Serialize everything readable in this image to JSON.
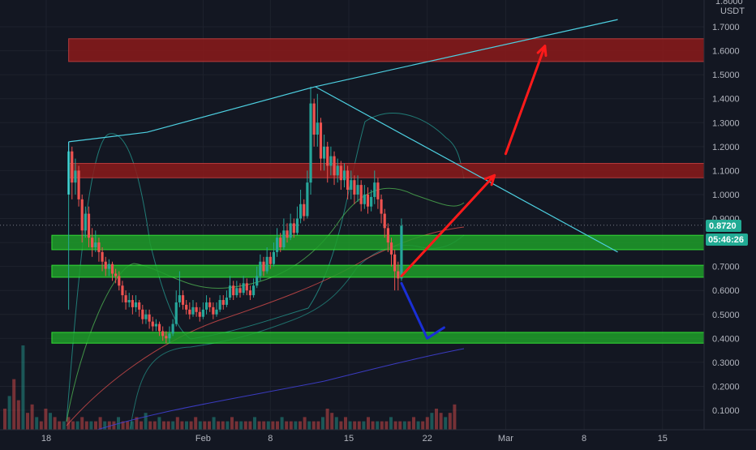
{
  "chart_data": {
    "type": "candlestick",
    "quote_currency": "USDT",
    "y_axis": {
      "min": 0.05,
      "max": 1.82,
      "ticks": [
        0.1,
        0.2,
        0.3,
        0.4,
        0.5,
        0.6,
        0.7,
        0.8,
        0.9,
        1.0,
        1.1,
        1.2,
        1.3,
        1.4,
        1.5,
        1.6,
        1.7
      ],
      "tick_labels": [
        "0.1000",
        "0.2000",
        "0.3000",
        "0.4000",
        "0.5000",
        "0.6000",
        "0.7000",
        "0.8000",
        "0.9000",
        "1.0000",
        "1.1000",
        "1.2000",
        "1.3000",
        "1.4000",
        "1.5000",
        "1.6000",
        "1.7000"
      ],
      "top_partial_label": "1.8000"
    },
    "x_axis": {
      "min_day": 16,
      "max_day": 47,
      "ticks": [
        {
          "day": 18,
          "label": "18"
        },
        {
          "day": 32,
          "label": "Feb"
        },
        {
          "day": 38,
          "label": "8"
        },
        {
          "day": 45,
          "label": "15"
        },
        {
          "day": 52,
          "label": "22"
        },
        {
          "day": 59,
          "label": "Mar"
        },
        {
          "day": 66,
          "label": "8"
        },
        {
          "day": 73,
          "label": "15"
        }
      ]
    },
    "last_price": 0.872,
    "last_price_label": "0.8720",
    "countdown_label": "05:46:26",
    "candles": [
      [
        20.0,
        1.0,
        1.18,
        1.22,
        0.52
      ],
      [
        20.3,
        1.18,
        1.05,
        1.2,
        0.98
      ],
      [
        20.6,
        1.05,
        1.1,
        1.15,
        1.0
      ],
      [
        20.9,
        1.1,
        0.98,
        1.12,
        0.95
      ],
      [
        21.2,
        0.98,
        0.85,
        1.0,
        0.8
      ],
      [
        21.5,
        0.85,
        0.92,
        0.95,
        0.82
      ],
      [
        21.8,
        0.92,
        0.82,
        0.95,
        0.78
      ],
      [
        22.1,
        0.82,
        0.78,
        0.86,
        0.74
      ],
      [
        22.4,
        0.78,
        0.8,
        0.85,
        0.76
      ],
      [
        22.7,
        0.8,
        0.76,
        0.82,
        0.72
      ],
      [
        23.0,
        0.76,
        0.72,
        0.78,
        0.68
      ],
      [
        23.3,
        0.72,
        0.69,
        0.74,
        0.66
      ],
      [
        23.6,
        0.69,
        0.71,
        0.73,
        0.66
      ],
      [
        23.9,
        0.71,
        0.67,
        0.72,
        0.64
      ],
      [
        24.2,
        0.67,
        0.66,
        0.69,
        0.63
      ],
      [
        24.5,
        0.66,
        0.62,
        0.68,
        0.6
      ],
      [
        24.8,
        0.62,
        0.58,
        0.64,
        0.55
      ],
      [
        25.1,
        0.58,
        0.55,
        0.6,
        0.52
      ],
      [
        25.4,
        0.55,
        0.56,
        0.59,
        0.53
      ],
      [
        25.7,
        0.56,
        0.53,
        0.58,
        0.5
      ],
      [
        26.0,
        0.53,
        0.55,
        0.58,
        0.51
      ],
      [
        26.3,
        0.55,
        0.52,
        0.56,
        0.49
      ],
      [
        26.6,
        0.52,
        0.48,
        0.54,
        0.46
      ],
      [
        26.9,
        0.48,
        0.5,
        0.52,
        0.46
      ],
      [
        27.2,
        0.5,
        0.47,
        0.52,
        0.44
      ],
      [
        27.5,
        0.47,
        0.45,
        0.49,
        0.43
      ],
      [
        27.8,
        0.45,
        0.46,
        0.48,
        0.43
      ],
      [
        28.1,
        0.46,
        0.43,
        0.47,
        0.41
      ],
      [
        28.4,
        0.43,
        0.41,
        0.45,
        0.39
      ],
      [
        28.7,
        0.41,
        0.4,
        0.43,
        0.38
      ],
      [
        29.0,
        0.4,
        0.42,
        0.45,
        0.38
      ],
      [
        29.3,
        0.42,
        0.46,
        0.48,
        0.41
      ],
      [
        29.6,
        0.46,
        0.55,
        0.6,
        0.45
      ],
      [
        29.9,
        0.55,
        0.58,
        0.68,
        0.53
      ],
      [
        30.2,
        0.58,
        0.54,
        0.6,
        0.52
      ],
      [
        30.5,
        0.54,
        0.52,
        0.56,
        0.5
      ],
      [
        30.8,
        0.52,
        0.5,
        0.55,
        0.48
      ],
      [
        31.1,
        0.5,
        0.53,
        0.56,
        0.49
      ],
      [
        31.4,
        0.53,
        0.51,
        0.55,
        0.49
      ],
      [
        31.7,
        0.51,
        0.49,
        0.53,
        0.47
      ],
      [
        32.0,
        0.49,
        0.52,
        0.55,
        0.48
      ],
      [
        32.3,
        0.52,
        0.55,
        0.58,
        0.5
      ],
      [
        32.6,
        0.55,
        0.53,
        0.57,
        0.51
      ],
      [
        32.9,
        0.53,
        0.5,
        0.55,
        0.48
      ],
      [
        33.2,
        0.5,
        0.52,
        0.55,
        0.49
      ],
      [
        33.5,
        0.52,
        0.56,
        0.58,
        0.51
      ],
      [
        33.8,
        0.56,
        0.54,
        0.58,
        0.52
      ],
      [
        34.1,
        0.54,
        0.57,
        0.6,
        0.53
      ],
      [
        34.4,
        0.57,
        0.62,
        0.66,
        0.56
      ],
      [
        34.7,
        0.62,
        0.58,
        0.64,
        0.56
      ],
      [
        35.0,
        0.58,
        0.61,
        0.64,
        0.57
      ],
      [
        35.3,
        0.61,
        0.59,
        0.63,
        0.57
      ],
      [
        35.6,
        0.59,
        0.63,
        0.66,
        0.58
      ],
      [
        35.9,
        0.63,
        0.6,
        0.65,
        0.58
      ],
      [
        36.2,
        0.6,
        0.58,
        0.62,
        0.56
      ],
      [
        36.5,
        0.58,
        0.62,
        0.65,
        0.57
      ],
      [
        36.8,
        0.62,
        0.66,
        0.7,
        0.61
      ],
      [
        37.1,
        0.66,
        0.72,
        0.75,
        0.64
      ],
      [
        37.4,
        0.72,
        0.68,
        0.74,
        0.66
      ],
      [
        37.7,
        0.68,
        0.74,
        0.78,
        0.67
      ],
      [
        38.0,
        0.74,
        0.71,
        0.76,
        0.69
      ],
      [
        38.3,
        0.71,
        0.76,
        0.8,
        0.7
      ],
      [
        38.6,
        0.76,
        0.82,
        0.86,
        0.74
      ],
      [
        38.9,
        0.82,
        0.78,
        0.84,
        0.76
      ],
      [
        39.2,
        0.78,
        0.85,
        0.9,
        0.77
      ],
      [
        39.5,
        0.85,
        0.82,
        0.88,
        0.8
      ],
      [
        39.8,
        0.82,
        0.88,
        0.92,
        0.81
      ],
      [
        40.1,
        0.88,
        0.84,
        0.9,
        0.82
      ],
      [
        40.4,
        0.84,
        0.9,
        0.95,
        0.83
      ],
      [
        40.7,
        0.9,
        0.96,
        1.02,
        0.88
      ],
      [
        41.0,
        0.96,
        0.91,
        0.98,
        0.89
      ],
      [
        41.3,
        0.91,
        1.05,
        1.1,
        0.9
      ],
      [
        41.6,
        1.05,
        1.38,
        1.45,
        1.0
      ],
      [
        41.9,
        1.38,
        1.25,
        1.4,
        1.2
      ],
      [
        42.2,
        1.25,
        1.3,
        1.42,
        1.2
      ],
      [
        42.5,
        1.3,
        1.15,
        1.32,
        1.1
      ],
      [
        42.8,
        1.15,
        1.2,
        1.25,
        1.1
      ],
      [
        43.1,
        1.2,
        1.12,
        1.22,
        1.05
      ],
      [
        43.4,
        1.12,
        1.16,
        1.2,
        1.08
      ],
      [
        43.7,
        1.16,
        1.08,
        1.18,
        1.04
      ],
      [
        44.0,
        1.08,
        1.12,
        1.15,
        1.05
      ],
      [
        44.3,
        1.12,
        1.06,
        1.14,
        1.02
      ],
      [
        44.6,
        1.06,
        1.1,
        1.13,
        1.03
      ],
      [
        44.9,
        1.1,
        1.02,
        1.12,
        0.98
      ],
      [
        45.2,
        1.02,
        1.06,
        1.1,
        0.98
      ],
      [
        45.5,
        1.06,
        1.0,
        1.08,
        0.96
      ],
      [
        45.8,
        1.0,
        1.04,
        1.08,
        0.97
      ],
      [
        46.1,
        1.04,
        0.96,
        1.06,
        0.93
      ],
      [
        46.4,
        0.96,
        1.0,
        1.04,
        0.94
      ],
      [
        46.7,
        1.0,
        0.95,
        1.03,
        0.92
      ],
      [
        47.0,
        0.95,
        0.99,
        1.02,
        0.93
      ],
      [
        47.3,
        0.99,
        1.05,
        1.1,
        0.96
      ],
      [
        47.6,
        1.05,
        0.98,
        1.07,
        0.94
      ],
      [
        47.9,
        0.98,
        0.92,
        1.0,
        0.88
      ],
      [
        48.2,
        0.92,
        0.86,
        0.94,
        0.82
      ],
      [
        48.5,
        0.86,
        0.8,
        0.88,
        0.76
      ],
      [
        48.8,
        0.8,
        0.75,
        0.82,
        0.7
      ],
      [
        49.1,
        0.75,
        0.68,
        0.77,
        0.6
      ],
      [
        49.4,
        0.68,
        0.65,
        0.72,
        0.6
      ],
      [
        49.7,
        0.65,
        0.87,
        0.9,
        0.64
      ]
    ],
    "volume": [
      0.05,
      0.08,
      0.12,
      0.07,
      0.2,
      0.04,
      0.06,
      0.03,
      0.02,
      0.05,
      0.04,
      0.03,
      0.02,
      0.02,
      0.03,
      0.02,
      0.02,
      0.03,
      0.02,
      0.02,
      0.02,
      0.03,
      0.02,
      0.02,
      0.02,
      0.03,
      0.02,
      0.02,
      0.02,
      0.03,
      0.02,
      0.04,
      0.02,
      0.02,
      0.03,
      0.02,
      0.02,
      0.02,
      0.03,
      0.02,
      0.02,
      0.02,
      0.03,
      0.02,
      0.02,
      0.02,
      0.03,
      0.02,
      0.02,
      0.02,
      0.03,
      0.02,
      0.02,
      0.02,
      0.02,
      0.03,
      0.02,
      0.02,
      0.02,
      0.02,
      0.02,
      0.03,
      0.02,
      0.02,
      0.02,
      0.02,
      0.03,
      0.02,
      0.02,
      0.02,
      0.03,
      0.05,
      0.04,
      0.03,
      0.02,
      0.03,
      0.02,
      0.02,
      0.02,
      0.02,
      0.03,
      0.02,
      0.02,
      0.02,
      0.02,
      0.03,
      0.02,
      0.02,
      0.02,
      0.02,
      0.03,
      0.02,
      0.02,
      0.03,
      0.04,
      0.05,
      0.04,
      0.03,
      0.04,
      0.06
    ],
    "zones": [
      {
        "name": "resistance-top",
        "y_low": 1.555,
        "y_high": 1.65,
        "x_start": 20.0,
        "color": "#8b1a1a"
      },
      {
        "name": "resistance-mid",
        "y_low": 1.07,
        "y_high": 1.13,
        "x_start": 20.0,
        "color": "#8b1a1a"
      },
      {
        "name": "support-upper",
        "y_low": 0.77,
        "y_high": 0.83,
        "x_start": 18.5,
        "color": "#1e9e2a"
      },
      {
        "name": "support-mid",
        "y_low": 0.655,
        "y_high": 0.705,
        "x_start": 18.5,
        "color": "#1e9e2a"
      },
      {
        "name": "support-low",
        "y_low": 0.38,
        "y_high": 0.425,
        "x_start": 18.5,
        "color": "#1e9e2a"
      }
    ],
    "trendlines": [
      {
        "name": "upper-trendline",
        "points": [
          [
            20.0,
            1.22
          ],
          [
            27.0,
            1.26
          ],
          [
            42.0,
            1.45
          ],
          [
            69.0,
            1.73
          ]
        ],
        "color": "#4dd0e1"
      },
      {
        "name": "descending-trendline",
        "points": [
          [
            42.0,
            1.45
          ],
          [
            69.0,
            0.76
          ]
        ],
        "color": "#4dd0e1"
      },
      {
        "name": "left-vertical",
        "points": [
          [
            20.0,
            1.22
          ],
          [
            20.0,
            1.0
          ]
        ],
        "color": "#4dd0e1"
      }
    ],
    "arrows": [
      {
        "name": "bullish-arrow-1",
        "points": [
          [
            49.7,
            0.66
          ],
          [
            58.0,
            1.08
          ]
        ],
        "color": "#ff1a1a"
      },
      {
        "name": "bullish-arrow-2",
        "points": [
          [
            59.0,
            1.17
          ],
          [
            62.5,
            1.62
          ]
        ],
        "color": "#ff1a1a"
      },
      {
        "name": "bearish-arrow",
        "points": [
          [
            49.7,
            0.63
          ],
          [
            52.0,
            0.4
          ],
          [
            53.5,
            0.445
          ]
        ],
        "color": "#1a2fd6"
      }
    ],
    "colors": {
      "bull": "#26a69a",
      "bear": "#ef5350",
      "grid": "#1e222d",
      "axis_text": "#b2b5be",
      "price_tag": "#22ab94"
    }
  }
}
